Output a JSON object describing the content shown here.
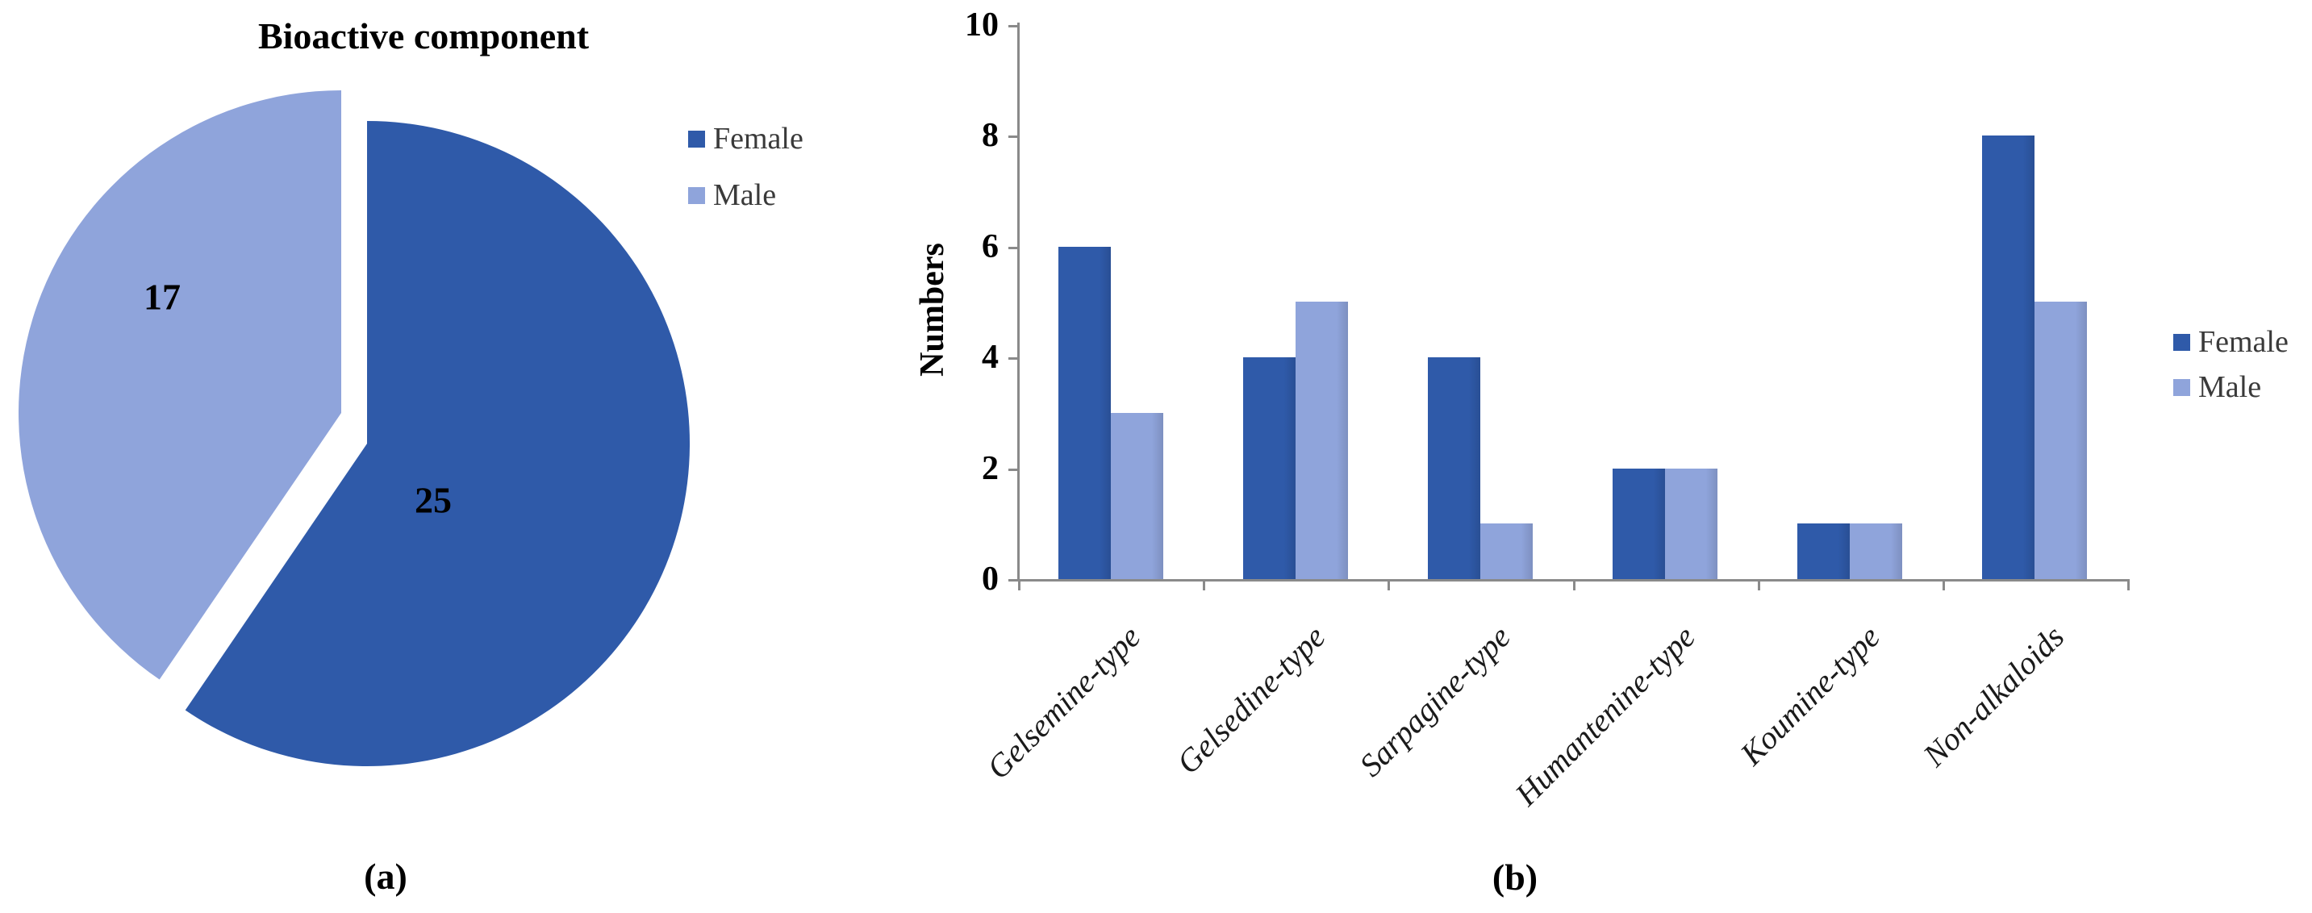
{
  "figure": {
    "caption_a": "(a)",
    "caption_b": "(b)"
  },
  "colors": {
    "female": "#2F5AA9",
    "male": "#8FA4DB",
    "axis": "#8A8A8A",
    "label_text": "#1A1A1A",
    "legend_text": "#3A3A3A"
  },
  "chart_data": [
    {
      "type": "pie",
      "panel": "a",
      "title": "Bioactive component",
      "legend_position": "right",
      "slices": [
        {
          "label": "Female",
          "value": 25,
          "color": "#2F5AA9",
          "exploded": false
        },
        {
          "label": "Male",
          "value": 17,
          "color": "#8FA4DB",
          "exploded": true
        }
      ],
      "start_angle": "top (12 o'clock), clockwise"
    },
    {
      "type": "bar",
      "panel": "b",
      "ylabel": "Numbers",
      "ylim": [
        0,
        10
      ],
      "yticks": [
        0,
        2,
        4,
        6,
        8,
        10
      ],
      "grid": false,
      "legend_position": "right",
      "categories": [
        "Gelsemine-type",
        "Gelsedine-type",
        "Sarpagine-type",
        "Humantenine-type",
        "Koumine-type",
        "Non-alkaloids"
      ],
      "series": [
        {
          "name": "Female",
          "values": [
            6,
            4,
            4,
            2,
            1,
            8
          ],
          "color": "#2F5AA9"
        },
        {
          "name": "Male",
          "values": [
            3,
            5,
            1,
            2,
            1,
            5
          ],
          "color": "#8FA4DB"
        }
      ]
    }
  ]
}
